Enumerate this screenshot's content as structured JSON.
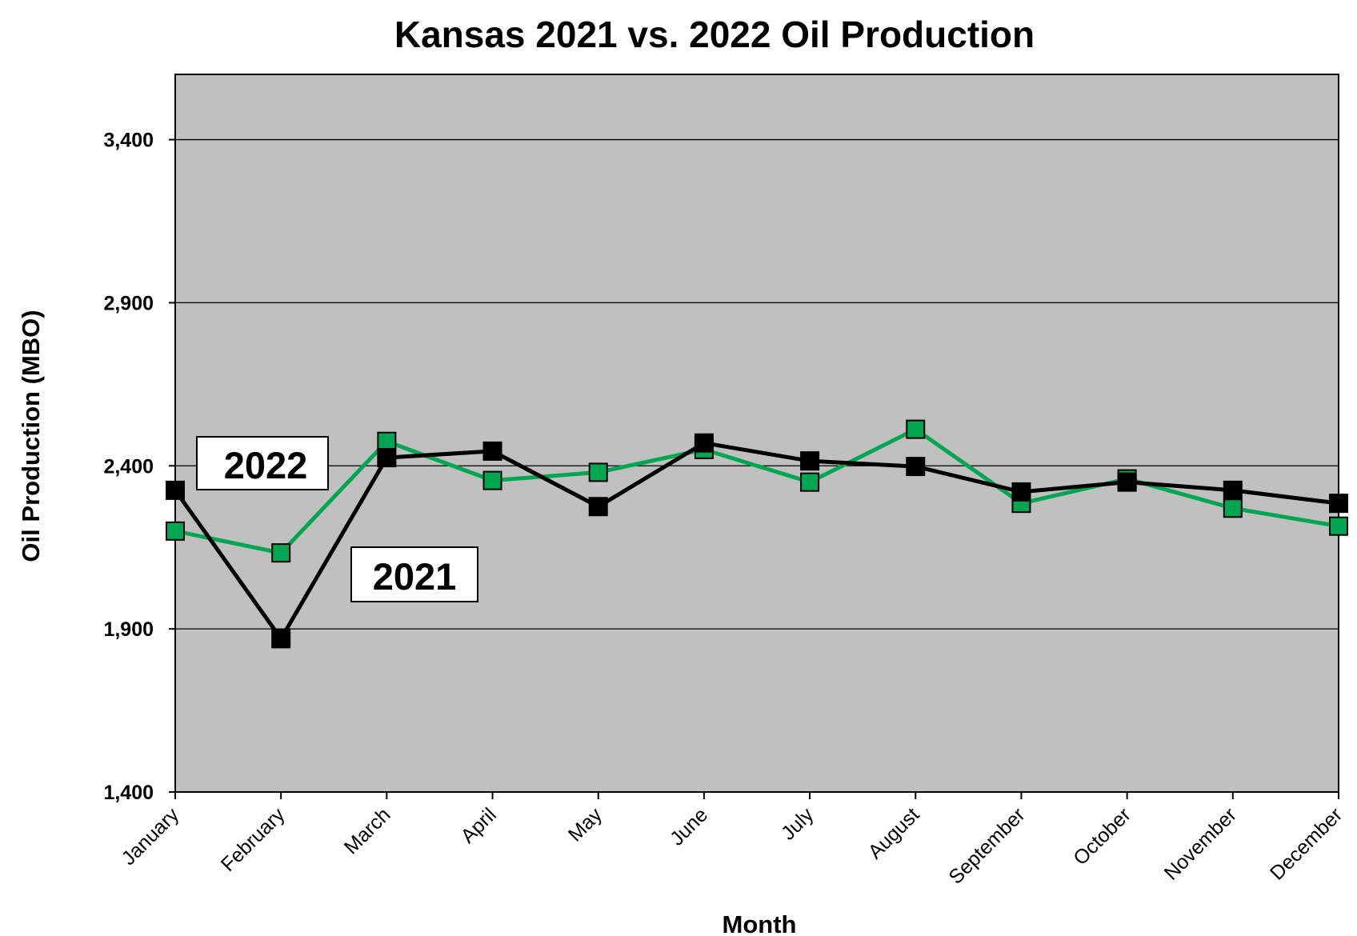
{
  "chart_data": {
    "type": "line",
    "title": "Kansas 2021 vs. 2022 Oil Production",
    "xlabel": "Month",
    "ylabel": "Oil Production (MBO)",
    "categories": [
      "January",
      "February",
      "March",
      "April",
      "May",
      "June",
      "July",
      "August",
      "September",
      "October",
      "November",
      "December"
    ],
    "ylim": [
      1400,
      3600
    ],
    "yticks": [
      1400,
      1900,
      2400,
      2900,
      3400
    ],
    "ytick_labels": [
      "1,400",
      "1,900",
      "2,400",
      "2,900",
      "3,400"
    ],
    "grid": true,
    "plot_background": "#c0c0c0",
    "series": [
      {
        "name": "2022",
        "color": "#00a651",
        "marker": "square",
        "values": [
          2200,
          2133,
          2475,
          2355,
          2380,
          2450,
          2350,
          2512,
          2285,
          2360,
          2270,
          2215
        ]
      },
      {
        "name": "2021",
        "color": "#000000",
        "marker": "square",
        "values": [
          2325,
          1870,
          2425,
          2445,
          2275,
          2470,
          2415,
          2398,
          2320,
          2350,
          2325,
          2285
        ]
      }
    ]
  }
}
